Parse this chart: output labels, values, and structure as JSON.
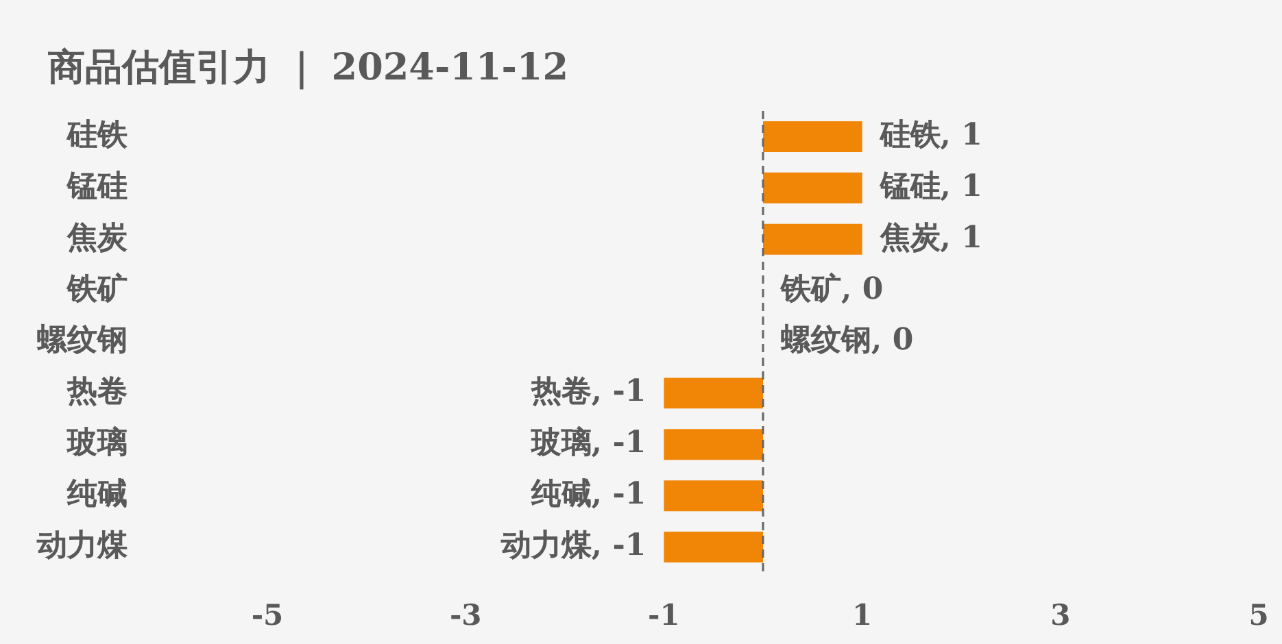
{
  "chart_data": {
    "type": "bar",
    "orientation": "horizontal",
    "title": "商品估值引力 ｜ 2024-11-12",
    "categories": [
      "硅铁",
      "锰硅",
      "焦炭",
      "铁矿",
      "螺纹钢",
      "热卷",
      "玻璃",
      "纯碱",
      "动力煤"
    ],
    "values": [
      1,
      1,
      1,
      0,
      0,
      -1,
      -1,
      -1,
      -1
    ],
    "color": "#f18505",
    "value_labels": [
      "硅铁, 1",
      "锰硅, 1",
      "焦炭, 1",
      "铁矿, 0",
      "螺纹钢, 0",
      "热卷, -1",
      "玻璃, -1",
      "纯碱, -1",
      "动力煤, -1"
    ],
    "xlim": [
      -5,
      5
    ],
    "xticks": [
      -5,
      -3,
      -1,
      1,
      3,
      5
    ],
    "ref_lines": [
      {
        "axis": "x",
        "value": 0,
        "color": "#666666",
        "line_style": "dashed"
      }
    ],
    "grid": false,
    "legend": false
  }
}
